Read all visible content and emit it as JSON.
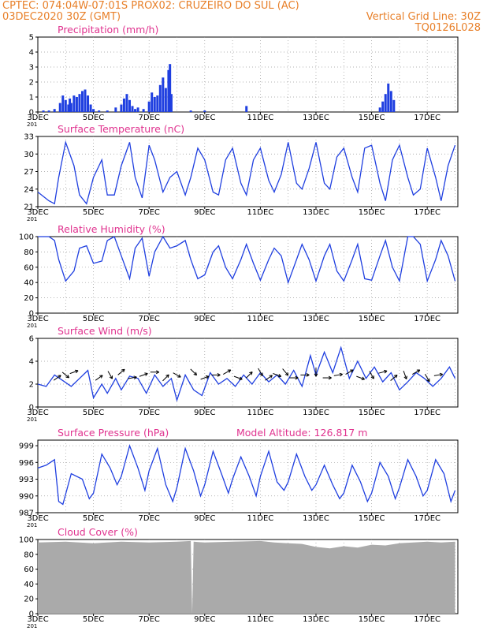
{
  "header": {
    "line1_left": "CPTEC:  074:04W-07:01S  PROX02: CRUZEIRO DO SUL (AC)",
    "line2_left": "03DEC2020 30Z (GMT)",
    "line2_right": "Vertical Grid Line: 30Z",
    "line3_right": "TQ0126L028"
  },
  "colors": {
    "header": "#e8802a",
    "title": "#e0338f",
    "line": "#1f3fe0",
    "bar": "#1f3fe0",
    "cloud": "#aaaaaa",
    "wind_arrow": "#000000"
  },
  "x_axis": {
    "labels": [
      "3DEC",
      "5DEC",
      "7DEC",
      "9DEC",
      "11DEC",
      "13DEC",
      "15DEC",
      "17DEC"
    ],
    "label_days": [
      3,
      5,
      7,
      9,
      11,
      13,
      15,
      17
    ],
    "range_days": [
      3,
      18.1
    ],
    "fragment_label": "201"
  },
  "chart_data": [
    {
      "type": "bar",
      "title": "Precipitation (mm/h)",
      "ylim": [
        0,
        5
      ],
      "yticks": [
        0,
        1,
        2,
        3,
        4,
        5
      ],
      "x": [
        3.2,
        3.4,
        3.6,
        3.8,
        3.9,
        4.0,
        4.1,
        4.15,
        4.2,
        4.3,
        4.4,
        4.5,
        4.6,
        4.7,
        4.8,
        4.9,
        5.0,
        5.2,
        5.5,
        5.8,
        6.0,
        6.1,
        6.2,
        6.3,
        6.4,
        6.5,
        6.6,
        6.8,
        7.0,
        7.1,
        7.2,
        7.3,
        7.4,
        7.5,
        7.6,
        7.7,
        7.75,
        7.8,
        8.5,
        9.0,
        10.5,
        15.3,
        15.4,
        15.5,
        15.6,
        15.7,
        15.8
      ],
      "values": [
        0.1,
        0.1,
        0.2,
        0.6,
        1.1,
        0.8,
        0.5,
        0.9,
        0.6,
        1.1,
        1.0,
        1.2,
        1.4,
        1.5,
        1.1,
        0.5,
        0.2,
        0.1,
        0.1,
        0.3,
        0.5,
        0.9,
        1.2,
        0.8,
        0.4,
        0.2,
        0.3,
        0.2,
        0.7,
        1.3,
        1.0,
        1.1,
        1.8,
        2.3,
        1.6,
        2.8,
        3.2,
        1.2,
        0.1,
        0.1,
        0.4,
        0.3,
        0.7,
        1.2,
        1.9,
        1.4,
        0.8
      ]
    },
    {
      "type": "line",
      "title": "Surface Temperature (nC)",
      "ylim": [
        21,
        33
      ],
      "yticks": [
        21,
        24,
        27,
        30,
        33
      ],
      "x": [
        3.0,
        3.4,
        3.6,
        3.75,
        4.0,
        4.3,
        4.5,
        4.75,
        5.0,
        5.3,
        5.5,
        5.75,
        6.0,
        6.3,
        6.5,
        6.75,
        7.0,
        7.2,
        7.5,
        7.75,
        8.0,
        8.3,
        8.5,
        8.75,
        9.0,
        9.3,
        9.5,
        9.75,
        10.0,
        10.3,
        10.5,
        10.75,
        11.0,
        11.3,
        11.5,
        11.75,
        12.0,
        12.3,
        12.5,
        12.75,
        13.0,
        13.3,
        13.5,
        13.75,
        14.0,
        14.3,
        14.5,
        14.75,
        15.0,
        15.3,
        15.5,
        15.75,
        16.0,
        16.3,
        16.5,
        16.75,
        17.0,
        17.3,
        17.5,
        17.75,
        18.0
      ],
      "values": [
        23.5,
        22.0,
        21.5,
        26.0,
        32.0,
        28.0,
        23.0,
        21.5,
        26.0,
        29.0,
        23.0,
        23.0,
        28.0,
        32.0,
        26.0,
        22.5,
        31.5,
        29.0,
        23.5,
        26.0,
        27.0,
        23.0,
        26.0,
        31.0,
        29.0,
        23.5,
        23.0,
        29.0,
        31.0,
        25.0,
        23.0,
        29.0,
        31.0,
        25.5,
        23.5,
        26.5,
        32.0,
        25.0,
        24.0,
        27.5,
        32.0,
        25.0,
        24.0,
        29.5,
        31.0,
        26.0,
        23.5,
        31.0,
        31.5,
        25.0,
        22.0,
        29.0,
        31.5,
        26.0,
        23.0,
        24.0,
        31.0,
        26.0,
        22.0,
        28.0,
        31.5
      ]
    },
    {
      "type": "line",
      "title": "Relative Humidity (%)",
      "ylim": [
        0,
        100
      ],
      "yticks": [
        0,
        20,
        40,
        60,
        80,
        100
      ],
      "x": [
        3.0,
        3.4,
        3.6,
        3.75,
        4.0,
        4.3,
        4.5,
        4.75,
        5.0,
        5.3,
        5.5,
        5.75,
        6.0,
        6.3,
        6.5,
        6.75,
        7.0,
        7.2,
        7.5,
        7.75,
        8.0,
        8.3,
        8.5,
        8.75,
        9.0,
        9.3,
        9.5,
        9.75,
        10.0,
        10.3,
        10.5,
        10.75,
        11.0,
        11.3,
        11.5,
        11.75,
        12.0,
        12.3,
        12.5,
        12.75,
        13.0,
        13.3,
        13.5,
        13.75,
        14.0,
        14.3,
        14.5,
        14.75,
        15.0,
        15.3,
        15.5,
        15.75,
        16.0,
        16.3,
        16.5,
        16.75,
        17.0,
        17.3,
        17.5,
        17.75,
        18.0
      ],
      "values": [
        100,
        100,
        95,
        70,
        42,
        55,
        85,
        88,
        65,
        68,
        95,
        100,
        75,
        45,
        85,
        98,
        48,
        80,
        100,
        85,
        88,
        95,
        70,
        45,
        50,
        80,
        88,
        60,
        45,
        70,
        90,
        65,
        43,
        70,
        85,
        75,
        40,
        70,
        90,
        70,
        42,
        75,
        90,
        55,
        42,
        70,
        90,
        45,
        43,
        75,
        95,
        60,
        42,
        100,
        100,
        90,
        42,
        70,
        95,
        75,
        42
      ]
    },
    {
      "type": "line",
      "title": "Surface Wind (m/s)",
      "ylim": [
        0,
        6
      ],
      "yticks": [
        0,
        2,
        4,
        6
      ],
      "x": [
        3.0,
        3.3,
        3.6,
        3.9,
        4.2,
        4.5,
        4.8,
        5.0,
        5.3,
        5.5,
        5.8,
        6.0,
        6.3,
        6.6,
        6.9,
        7.2,
        7.5,
        7.8,
        8.0,
        8.3,
        8.6,
        8.9,
        9.2,
        9.5,
        9.8,
        10.1,
        10.4,
        10.7,
        11.0,
        11.3,
        11.6,
        11.9,
        12.2,
        12.5,
        12.8,
        13.0,
        13.3,
        13.6,
        13.9,
        14.2,
        14.5,
        14.8,
        15.1,
        15.4,
        15.7,
        16.0,
        16.3,
        16.6,
        16.9,
        17.2,
        17.5,
        17.8,
        18.0
      ],
      "values": [
        2.0,
        1.8,
        2.8,
        2.3,
        1.8,
        2.5,
        3.2,
        0.8,
        2.0,
        1.2,
        2.5,
        1.5,
        2.7,
        2.5,
        1.2,
        2.8,
        1.8,
        2.5,
        0.6,
        2.8,
        1.5,
        1.0,
        3.0,
        2.0,
        2.5,
        1.8,
        2.8,
        2.0,
        3.0,
        2.2,
        2.8,
        2.0,
        3.2,
        1.8,
        4.5,
        2.8,
        4.8,
        3.0,
        5.2,
        2.5,
        4.0,
        2.5,
        3.5,
        2.2,
        3.0,
        1.5,
        2.2,
        3.0,
        2.5,
        1.8,
        2.5,
        3.5,
        2.5
      ],
      "arrow_x": [
        3.7,
        4.0,
        4.3,
        5.2,
        5.6,
        6.0,
        6.4,
        6.8,
        7.2,
        7.6,
        8.0,
        8.6,
        9.0,
        9.4,
        9.8,
        10.2,
        10.6,
        11.0,
        11.3,
        11.6,
        11.9,
        12.2,
        12.6,
        13.0,
        13.4,
        13.8,
        14.2,
        14.6,
        15.0,
        15.4,
        15.8,
        16.2,
        16.6,
        17.0,
        17.4
      ],
      "arrow_dir_deg": [
        35,
        -40,
        20,
        35,
        -60,
        40,
        10,
        20,
        0,
        45,
        -30,
        -45,
        20,
        0,
        30,
        -20,
        45,
        -60,
        35,
        -20,
        -50,
        0,
        0,
        -90,
        0,
        10,
        30,
        -20,
        -60,
        15,
        40,
        -70,
        30,
        -60,
        10
      ]
    },
    {
      "type": "line",
      "title": "Surface Pressure (hPa)",
      "subtitle": "Model Altitude: 126.817 m",
      "ylim": [
        987,
        1000
      ],
      "yticks": [
        987,
        990,
        993,
        996,
        999
      ],
      "x": [
        3.0,
        3.3,
        3.6,
        3.75,
        3.9,
        4.2,
        4.6,
        4.85,
        5.0,
        5.3,
        5.6,
        5.85,
        6.0,
        6.3,
        6.6,
        6.85,
        7.0,
        7.3,
        7.6,
        7.85,
        8.0,
        8.3,
        8.6,
        8.85,
        9.0,
        9.3,
        9.6,
        9.85,
        10.0,
        10.3,
        10.6,
        10.85,
        11.0,
        11.3,
        11.6,
        11.85,
        12.0,
        12.3,
        12.6,
        12.85,
        13.0,
        13.3,
        13.6,
        13.85,
        14.0,
        14.3,
        14.6,
        14.85,
        15.0,
        15.3,
        15.6,
        15.85,
        16.0,
        16.3,
        16.6,
        16.85,
        17.0,
        17.3,
        17.6,
        17.85,
        18.0
      ],
      "values": [
        995.0,
        995.5,
        996.5,
        989.0,
        988.5,
        994.0,
        993.0,
        989.5,
        990.5,
        997.5,
        995.0,
        992.0,
        993.5,
        999.0,
        995.0,
        991.0,
        994.5,
        998.5,
        992.0,
        989.0,
        991.5,
        998.5,
        994.5,
        990.0,
        992.0,
        998.0,
        994.0,
        990.5,
        993.0,
        997.0,
        993.5,
        990.0,
        993.5,
        998.0,
        992.5,
        991.0,
        992.5,
        997.5,
        993.5,
        991.0,
        992.0,
        995.5,
        992.0,
        989.5,
        990.5,
        995.5,
        992.5,
        989.0,
        990.5,
        996.0,
        993.5,
        989.5,
        991.5,
        996.5,
        993.5,
        990.0,
        991.0,
        996.5,
        994.0,
        989.0,
        991.0
      ]
    },
    {
      "type": "area",
      "title": "Cloud Cover (%)",
      "ylim": [
        0,
        100
      ],
      "yticks": [
        0,
        20,
        40,
        60,
        80,
        100
      ],
      "x": [
        3.0,
        4.0,
        5.0,
        6.0,
        7.0,
        8.0,
        8.5,
        8.55,
        8.6,
        9.0,
        10.0,
        11.0,
        11.5,
        12.0,
        12.5,
        13.0,
        13.5,
        14.0,
        14.5,
        15.0,
        15.5,
        16.0,
        16.5,
        17.0,
        17.5,
        18.0
      ],
      "values": [
        96,
        97,
        95,
        97,
        96,
        97,
        98,
        0,
        97,
        96,
        97,
        98,
        96,
        95,
        94,
        90,
        88,
        91,
        89,
        93,
        92,
        95,
        96,
        97,
        96,
        97
      ]
    }
  ]
}
